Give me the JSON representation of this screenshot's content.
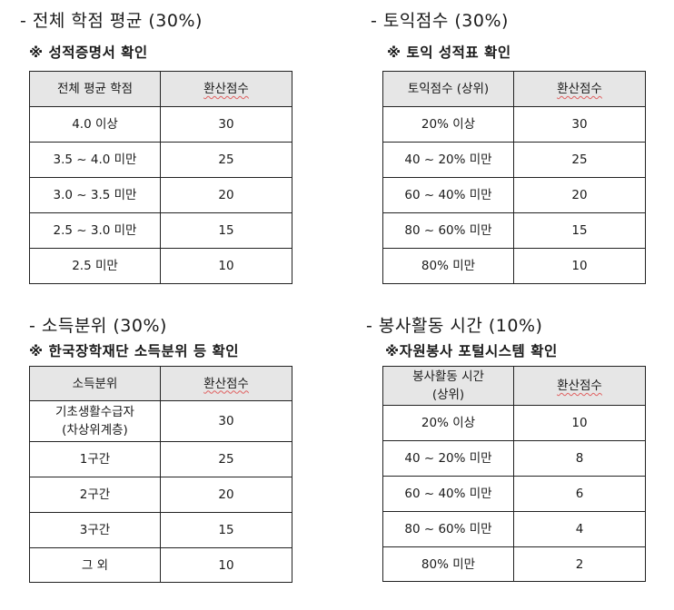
{
  "gpa": {
    "title": "- 전체 학점 평균 (30%)",
    "note": "※ 성적증명서 확인",
    "headers": [
      "전체 평균 학점",
      "환산점수"
    ],
    "rows": [
      [
        "4.0 이상",
        "30"
      ],
      [
        "3.5 ~ 4.0 미만",
        "25"
      ],
      [
        "3.0 ~ 3.5 미만",
        "20"
      ],
      [
        "2.5 ~ 3.0 미만",
        "15"
      ],
      [
        "2.5 미만",
        "10"
      ]
    ]
  },
  "toeic": {
    "title": "- 토익점수 (30%)",
    "note": "※ 토익 성적표 확인",
    "headers": [
      "토익점수 (상위)",
      "환산점수"
    ],
    "rows": [
      [
        "20% 이상",
        "30"
      ],
      [
        "40 ~ 20% 미만",
        "25"
      ],
      [
        "60 ~ 40% 미만",
        "20"
      ],
      [
        "80 ~ 60% 미만",
        "15"
      ],
      [
        "80% 미만",
        "10"
      ]
    ]
  },
  "income": {
    "title": "- 소득분위 (30%)",
    "note": "※ 한국장학재단 소득분위 등 확인",
    "headers": [
      "소득분위",
      "환산점수"
    ],
    "rows": [
      [
        "기초생활수급자",
        "(차상위계층)",
        "30"
      ],
      [
        "1구간",
        "25"
      ],
      [
        "2구간",
        "20"
      ],
      [
        "3구간",
        "15"
      ],
      [
        "그 외",
        "10"
      ]
    ]
  },
  "volunteer": {
    "title": "- 봉사활동 시간 (10%)",
    "note": "※자원봉사 포털시스템 확인",
    "headers": [
      "봉사활동 시간",
      "(상위)",
      "환산점수"
    ],
    "rows": [
      [
        "20% 이상",
        "10"
      ],
      [
        "40 ~ 20% 미만",
        "8"
      ],
      [
        "60 ~ 40% 미만",
        "6"
      ],
      [
        "80 ~ 60% 미만",
        "4"
      ],
      [
        "80% 미만",
        "2"
      ]
    ]
  }
}
